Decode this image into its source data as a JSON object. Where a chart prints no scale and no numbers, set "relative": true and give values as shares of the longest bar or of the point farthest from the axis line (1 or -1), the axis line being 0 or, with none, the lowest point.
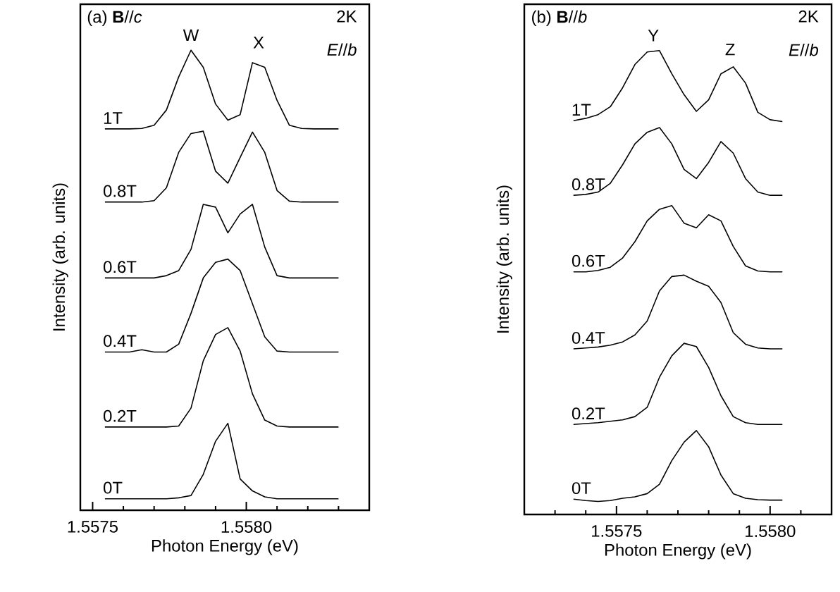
{
  "chart_data": [
    {
      "type": "line",
      "relative": true,
      "xlabel": "Photon Energy (eV)",
      "ylabel": "Intensity (arb. units)",
      "xlim": [
        1.55746,
        1.5584
      ],
      "xticks": [
        {
          "value": 1.5575,
          "label": "1.5575"
        },
        {
          "value": 1.5576,
          "label": null
        },
        {
          "value": 1.5577,
          "label": null
        },
        {
          "value": 1.5578,
          "label": null
        },
        {
          "value": 1.5579,
          "label": null
        },
        {
          "value": 1.558,
          "label": "1.5580"
        },
        {
          "value": 1.5581,
          "label": null
        },
        {
          "value": 1.5582,
          "label": null
        },
        {
          "value": 1.5583,
          "label": null
        }
      ],
      "tick_labels": "x",
      "marker": "none",
      "line_style": "solid",
      "x": [
        1.55754,
        1.55758,
        1.55762,
        1.55766,
        1.5577,
        1.55774,
        1.55778,
        1.55782,
        1.55786,
        1.5579,
        1.55794,
        1.55798,
        1.55802,
        1.55806,
        1.5581,
        1.55814,
        1.55818,
        1.55822,
        1.55826,
        1.5583
      ],
      "series": [
        {
          "name": "1T",
          "color": "#000000",
          "values": [
            0.829,
            0.829,
            0.829,
            0.83,
            0.837,
            0.87,
            0.942,
            1.0,
            0.963,
            0.883,
            0.848,
            0.86,
            0.973,
            0.963,
            0.891,
            0.837,
            0.83,
            0.829,
            0.829,
            0.829
          ]
        },
        {
          "name": "0.8T",
          "color": "#000000",
          "values": [
            0.67,
            0.67,
            0.67,
            0.67,
            0.673,
            0.701,
            0.778,
            0.819,
            0.824,
            0.737,
            0.711,
            0.767,
            0.822,
            0.778,
            0.695,
            0.672,
            0.67,
            0.67,
            0.67,
            0.67
          ]
        },
        {
          "name": "0.6T",
          "color": "#000000",
          "values": [
            0.505,
            0.505,
            0.505,
            0.505,
            0.505,
            0.51,
            0.521,
            0.567,
            0.665,
            0.659,
            0.603,
            0.644,
            0.665,
            0.572,
            0.51,
            0.505,
            0.505,
            0.505,
            0.505,
            0.505
          ]
        },
        {
          "name": "0.4T",
          "color": "#000000",
          "values": [
            0.344,
            0.344,
            0.344,
            0.349,
            0.344,
            0.344,
            0.361,
            0.428,
            0.505,
            0.539,
            0.546,
            0.521,
            0.449,
            0.377,
            0.346,
            0.344,
            0.344,
            0.344,
            0.344,
            0.344
          ]
        },
        {
          "name": "0.2T",
          "color": "#000000",
          "values": [
            0.181,
            0.181,
            0.181,
            0.181,
            0.181,
            0.181,
            0.183,
            0.222,
            0.325,
            0.382,
            0.397,
            0.346,
            0.253,
            0.196,
            0.183,
            0.181,
            0.181,
            0.181,
            0.181,
            0.181
          ]
        },
        {
          "name": "0T",
          "color": "#000000",
          "values": [
            0.025,
            0.025,
            0.025,
            0.025,
            0.025,
            0.025,
            0.027,
            0.032,
            0.078,
            0.15,
            0.189,
            0.068,
            0.042,
            0.029,
            0.025,
            0.025,
            0.025,
            0.025,
            0.025,
            0.025
          ]
        }
      ],
      "annotations": [
        "(a) **B**//*c*",
        "2K",
        "*E*//*b*",
        {
          "text": "W",
          "x": 1.55782,
          "y": 1.0
        },
        {
          "text": "X",
          "x": 1.55804,
          "y": 0.984
        }
      ]
    },
    {
      "type": "line",
      "relative": true,
      "xlabel": "Photon Energy (eV)",
      "ylabel": "Intensity (arb. units)",
      "xlim": [
        1.5572,
        1.5582
      ],
      "xticks": [
        {
          "value": 1.5573,
          "label": null
        },
        {
          "value": 1.5574,
          "label": null
        },
        {
          "value": 1.5575,
          "label": "1.5575"
        },
        {
          "value": 1.5576,
          "label": null
        },
        {
          "value": 1.5577,
          "label": null
        },
        {
          "value": 1.5578,
          "label": null
        },
        {
          "value": 1.5579,
          "label": null
        },
        {
          "value": 1.558,
          "label": "1.5580"
        },
        {
          "value": 1.5581,
          "label": null
        }
      ],
      "tick_labels": "x",
      "marker": "none",
      "line_style": "solid",
      "x": [
        1.55736,
        1.5574,
        1.55744,
        1.55748,
        1.55752,
        1.55756,
        1.5576,
        1.55764,
        1.55768,
        1.55772,
        1.55776,
        1.5578,
        1.55784,
        1.55788,
        1.55792,
        1.55796,
        1.558,
        1.55804
      ],
      "series": [
        {
          "name": "1T",
          "color": "#000000",
          "values": [
            0.849,
            0.854,
            0.862,
            0.879,
            0.92,
            0.97,
            0.997,
            1.0,
            0.95,
            0.905,
            0.869,
            0.894,
            0.95,
            0.965,
            0.93,
            0.867,
            0.851,
            0.847
          ]
        },
        {
          "name": "0.8T",
          "color": "#000000",
          "values": [
            0.688,
            0.69,
            0.695,
            0.714,
            0.754,
            0.799,
            0.824,
            0.834,
            0.799,
            0.744,
            0.724,
            0.759,
            0.804,
            0.779,
            0.724,
            0.695,
            0.688,
            0.688
          ]
        },
        {
          "name": "0.6T",
          "color": "#000000",
          "values": [
            0.523,
            0.523,
            0.526,
            0.533,
            0.553,
            0.588,
            0.633,
            0.658,
            0.666,
            0.628,
            0.618,
            0.646,
            0.633,
            0.578,
            0.536,
            0.525,
            0.523,
            0.523
          ]
        },
        {
          "name": "0.4T",
          "color": "#000000",
          "values": [
            0.357,
            0.359,
            0.361,
            0.365,
            0.372,
            0.387,
            0.417,
            0.482,
            0.513,
            0.516,
            0.503,
            0.492,
            0.457,
            0.392,
            0.367,
            0.359,
            0.357,
            0.357
          ]
        },
        {
          "name": "0.2T",
          "color": "#000000",
          "values": [
            0.194,
            0.196,
            0.198,
            0.201,
            0.204,
            0.211,
            0.231,
            0.296,
            0.342,
            0.369,
            0.362,
            0.317,
            0.256,
            0.211,
            0.198,
            0.194,
            0.194,
            0.194
          ]
        },
        {
          "name": "0T",
          "color": "#000000",
          "values": [
            0.033,
            0.03,
            0.028,
            0.03,
            0.035,
            0.038,
            0.045,
            0.065,
            0.116,
            0.156,
            0.181,
            0.146,
            0.085,
            0.045,
            0.035,
            0.032,
            0.031,
            0.031
          ]
        }
      ],
      "annotations": [
        "(b) **B**//*b*",
        "2K",
        "*E*//*b*",
        {
          "text": "Y",
          "x": 1.55762,
          "y": 1.0
        },
        {
          "text": "Z",
          "x": 1.55787,
          "y": 0.97
        }
      ]
    }
  ]
}
